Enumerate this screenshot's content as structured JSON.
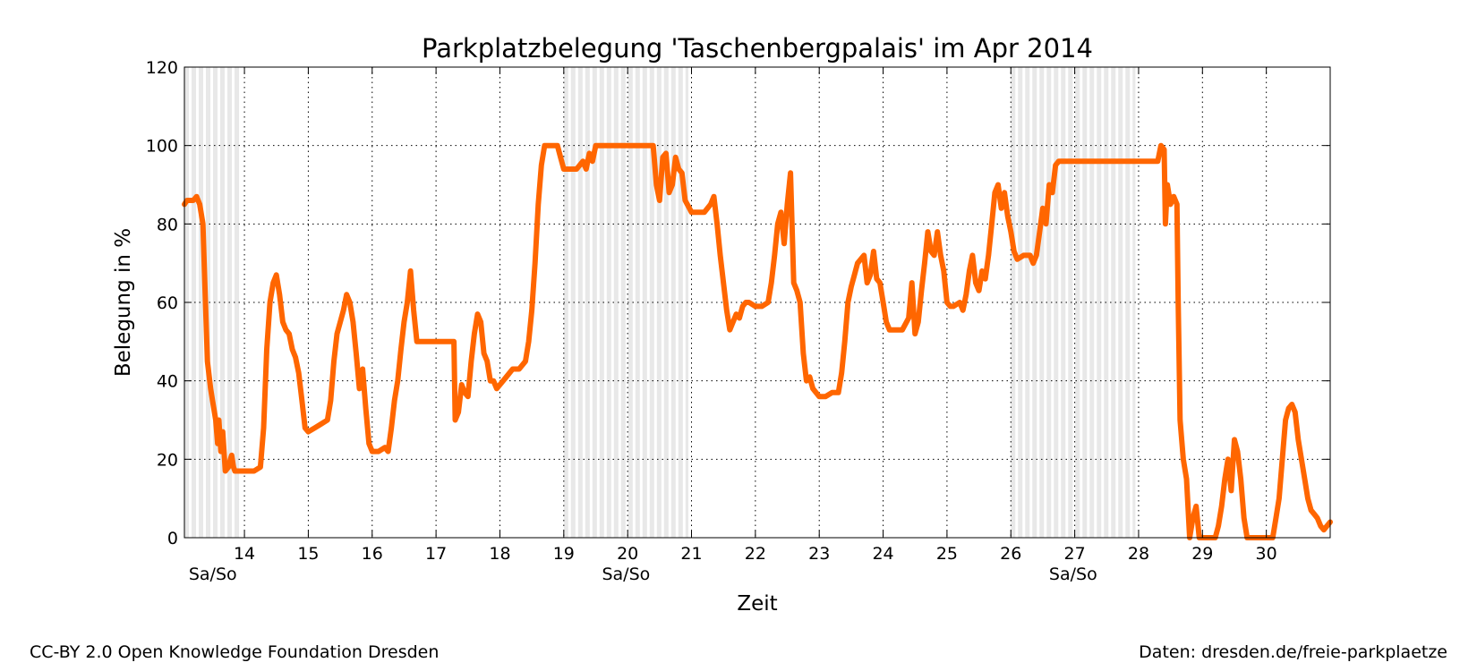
{
  "chart_data": {
    "type": "line",
    "title": "Parkplatzbelegung 'Taschenbergpalais' im Apr 2014",
    "xlabel": "Zeit",
    "ylabel": "Belegung in %",
    "xlim": [
      13.06,
      31.0
    ],
    "ylim": [
      0,
      120
    ],
    "yticks": [
      0,
      20,
      40,
      60,
      80,
      100,
      120
    ],
    "xticks": [
      14,
      15,
      16,
      17,
      18,
      19,
      20,
      21,
      22,
      23,
      24,
      25,
      26,
      27,
      28,
      29,
      30
    ],
    "grid": true,
    "line_color": "#ff6600",
    "weekend_shading_color": "#e8e8e8",
    "weekend_label": "Sa/So",
    "weekends": [
      [
        13.06,
        13.95
      ],
      [
        19.0,
        20.95
      ],
      [
        26.0,
        27.95
      ]
    ],
    "series": [
      {
        "values": [
          [
            13.06,
            85
          ],
          [
            13.1,
            86
          ],
          [
            13.2,
            86
          ],
          [
            13.25,
            87
          ],
          [
            13.3,
            85
          ],
          [
            13.35,
            80
          ],
          [
            13.38,
            65
          ],
          [
            13.42,
            45
          ],
          [
            13.47,
            38
          ],
          [
            13.5,
            35
          ],
          [
            13.55,
            30
          ],
          [
            13.58,
            24
          ],
          [
            13.6,
            30
          ],
          [
            13.63,
            22
          ],
          [
            13.66,
            27
          ],
          [
            13.7,
            17
          ],
          [
            13.75,
            18
          ],
          [
            13.78,
            20
          ],
          [
            13.8,
            21
          ],
          [
            13.83,
            18
          ],
          [
            13.85,
            17
          ],
          [
            13.9,
            17
          ],
          [
            14.0,
            17
          ],
          [
            14.15,
            17
          ],
          [
            14.25,
            18
          ],
          [
            14.3,
            28
          ],
          [
            14.35,
            48
          ],
          [
            14.4,
            60
          ],
          [
            14.45,
            65
          ],
          [
            14.5,
            67
          ],
          [
            14.55,
            62
          ],
          [
            14.6,
            55
          ],
          [
            14.65,
            53
          ],
          [
            14.7,
            52
          ],
          [
            14.75,
            48
          ],
          [
            14.8,
            46
          ],
          [
            14.85,
            42
          ],
          [
            14.9,
            35
          ],
          [
            14.95,
            28
          ],
          [
            15.0,
            27
          ],
          [
            15.1,
            28
          ],
          [
            15.2,
            29
          ],
          [
            15.3,
            30
          ],
          [
            15.35,
            35
          ],
          [
            15.4,
            45
          ],
          [
            15.45,
            52
          ],
          [
            15.5,
            55
          ],
          [
            15.55,
            58
          ],
          [
            15.6,
            62
          ],
          [
            15.65,
            60
          ],
          [
            15.7,
            55
          ],
          [
            15.75,
            47
          ],
          [
            15.8,
            38
          ],
          [
            15.85,
            43
          ],
          [
            15.9,
            33
          ],
          [
            15.95,
            24
          ],
          [
            16.0,
            22
          ],
          [
            16.1,
            22
          ],
          [
            16.2,
            23
          ],
          [
            16.25,
            22
          ],
          [
            16.3,
            28
          ],
          [
            16.35,
            35
          ],
          [
            16.4,
            40
          ],
          [
            16.45,
            48
          ],
          [
            16.5,
            55
          ],
          [
            16.55,
            60
          ],
          [
            16.6,
            68
          ],
          [
            16.65,
            58
          ],
          [
            16.7,
            50
          ],
          [
            16.8,
            50
          ],
          [
            17.0,
            50
          ],
          [
            17.2,
            50
          ],
          [
            17.28,
            50
          ],
          [
            17.3,
            30
          ],
          [
            17.35,
            32
          ],
          [
            17.4,
            39
          ],
          [
            17.45,
            37
          ],
          [
            17.5,
            36
          ],
          [
            17.55,
            45
          ],
          [
            17.6,
            52
          ],
          [
            17.65,
            57
          ],
          [
            17.7,
            55
          ],
          [
            17.75,
            47
          ],
          [
            17.8,
            45
          ],
          [
            17.85,
            40
          ],
          [
            17.9,
            40
          ],
          [
            17.95,
            38
          ],
          [
            18.0,
            39
          ],
          [
            18.1,
            41
          ],
          [
            18.2,
            43
          ],
          [
            18.3,
            43
          ],
          [
            18.4,
            45
          ],
          [
            18.45,
            50
          ],
          [
            18.5,
            58
          ],
          [
            18.55,
            70
          ],
          [
            18.6,
            85
          ],
          [
            18.65,
            95
          ],
          [
            18.7,
            100
          ],
          [
            18.8,
            100
          ],
          [
            18.9,
            100
          ],
          [
            18.95,
            97
          ],
          [
            19.0,
            94
          ],
          [
            19.1,
            94
          ],
          [
            19.2,
            94
          ],
          [
            19.3,
            96
          ],
          [
            19.35,
            94
          ],
          [
            19.4,
            98
          ],
          [
            19.45,
            96
          ],
          [
            19.5,
            100
          ],
          [
            19.6,
            100
          ],
          [
            19.8,
            100
          ],
          [
            20.0,
            100
          ],
          [
            20.2,
            100
          ],
          [
            20.4,
            100
          ],
          [
            20.45,
            90
          ],
          [
            20.5,
            86
          ],
          [
            20.55,
            97
          ],
          [
            20.6,
            98
          ],
          [
            20.65,
            88
          ],
          [
            20.7,
            90
          ],
          [
            20.75,
            97
          ],
          [
            20.8,
            94
          ],
          [
            20.85,
            93
          ],
          [
            20.9,
            86
          ],
          [
            21.0,
            83
          ],
          [
            21.1,
            83
          ],
          [
            21.2,
            83
          ],
          [
            21.3,
            85
          ],
          [
            21.35,
            87
          ],
          [
            21.4,
            80
          ],
          [
            21.45,
            72
          ],
          [
            21.5,
            65
          ],
          [
            21.55,
            58
          ],
          [
            21.6,
            53
          ],
          [
            21.65,
            55
          ],
          [
            21.7,
            57
          ],
          [
            21.75,
            56
          ],
          [
            21.8,
            59
          ],
          [
            21.85,
            60
          ],
          [
            21.9,
            60
          ],
          [
            22.0,
            59
          ],
          [
            22.1,
            59
          ],
          [
            22.2,
            60
          ],
          [
            22.25,
            65
          ],
          [
            22.3,
            72
          ],
          [
            22.35,
            80
          ],
          [
            22.4,
            83
          ],
          [
            22.45,
            75
          ],
          [
            22.5,
            85
          ],
          [
            22.55,
            93
          ],
          [
            22.6,
            65
          ],
          [
            22.65,
            63
          ],
          [
            22.7,
            60
          ],
          [
            22.75,
            47
          ],
          [
            22.8,
            40
          ],
          [
            22.85,
            41
          ],
          [
            22.9,
            38
          ],
          [
            22.95,
            37
          ],
          [
            23.0,
            36
          ],
          [
            23.1,
            36
          ],
          [
            23.2,
            37
          ],
          [
            23.3,
            37
          ],
          [
            23.35,
            42
          ],
          [
            23.4,
            50
          ],
          [
            23.45,
            60
          ],
          [
            23.5,
            64
          ],
          [
            23.55,
            67
          ],
          [
            23.6,
            70
          ],
          [
            23.65,
            71
          ],
          [
            23.7,
            72
          ],
          [
            23.75,
            65
          ],
          [
            23.8,
            67
          ],
          [
            23.85,
            73
          ],
          [
            23.9,
            66
          ],
          [
            23.95,
            65
          ],
          [
            24.0,
            60
          ],
          [
            24.05,
            55
          ],
          [
            24.1,
            53
          ],
          [
            24.2,
            53
          ],
          [
            24.3,
            53
          ],
          [
            24.4,
            56
          ],
          [
            24.45,
            65
          ],
          [
            24.5,
            52
          ],
          [
            24.55,
            55
          ],
          [
            24.6,
            63
          ],
          [
            24.65,
            70
          ],
          [
            24.7,
            78
          ],
          [
            24.75,
            73
          ],
          [
            24.8,
            72
          ],
          [
            24.85,
            78
          ],
          [
            24.9,
            72
          ],
          [
            24.95,
            68
          ],
          [
            25.0,
            60
          ],
          [
            25.05,
            59
          ],
          [
            25.1,
            59
          ],
          [
            25.2,
            60
          ],
          [
            25.25,
            58
          ],
          [
            25.3,
            62
          ],
          [
            25.35,
            68
          ],
          [
            25.4,
            72
          ],
          [
            25.45,
            65
          ],
          [
            25.5,
            63
          ],
          [
            25.55,
            68
          ],
          [
            25.6,
            66
          ],
          [
            25.65,
            72
          ],
          [
            25.7,
            80
          ],
          [
            25.75,
            88
          ],
          [
            25.8,
            90
          ],
          [
            25.85,
            84
          ],
          [
            25.9,
            88
          ],
          [
            25.95,
            82
          ],
          [
            26.0,
            78
          ],
          [
            26.05,
            73
          ],
          [
            26.1,
            71
          ],
          [
            26.2,
            72
          ],
          [
            26.3,
            72
          ],
          [
            26.35,
            70
          ],
          [
            26.4,
            72
          ],
          [
            26.45,
            78
          ],
          [
            26.5,
            84
          ],
          [
            26.55,
            80
          ],
          [
            26.6,
            90
          ],
          [
            26.65,
            88
          ],
          [
            26.7,
            95
          ],
          [
            26.75,
            96
          ],
          [
            26.9,
            96
          ],
          [
            27.1,
            96
          ],
          [
            27.3,
            96
          ],
          [
            27.5,
            96
          ],
          [
            27.7,
            96
          ],
          [
            27.9,
            96
          ],
          [
            28.1,
            96
          ],
          [
            28.3,
            96
          ],
          [
            28.35,
            100
          ],
          [
            28.4,
            99
          ],
          [
            28.42,
            80
          ],
          [
            28.45,
            90
          ],
          [
            28.5,
            85
          ],
          [
            28.55,
            87
          ],
          [
            28.6,
            85
          ],
          [
            28.62,
            60
          ],
          [
            28.65,
            30
          ],
          [
            28.7,
            20
          ],
          [
            28.75,
            15
          ],
          [
            28.8,
            0
          ],
          [
            28.85,
            5
          ],
          [
            28.9,
            8
          ],
          [
            28.95,
            0
          ],
          [
            29.0,
            0
          ],
          [
            29.1,
            0
          ],
          [
            29.2,
            0
          ],
          [
            29.25,
            3
          ],
          [
            29.3,
            8
          ],
          [
            29.35,
            15
          ],
          [
            29.4,
            20
          ],
          [
            29.45,
            12
          ],
          [
            29.5,
            25
          ],
          [
            29.55,
            22
          ],
          [
            29.6,
            15
          ],
          [
            29.65,
            5
          ],
          [
            29.7,
            0
          ],
          [
            29.8,
            0
          ],
          [
            29.9,
            0
          ],
          [
            30.0,
            0
          ],
          [
            30.1,
            0
          ],
          [
            30.15,
            5
          ],
          [
            30.2,
            10
          ],
          [
            30.25,
            20
          ],
          [
            30.3,
            30
          ],
          [
            30.35,
            33
          ],
          [
            30.4,
            34
          ],
          [
            30.45,
            32
          ],
          [
            30.5,
            25
          ],
          [
            30.55,
            20
          ],
          [
            30.6,
            15
          ],
          [
            30.65,
            10
          ],
          [
            30.7,
            7
          ],
          [
            30.75,
            6
          ],
          [
            30.8,
            5
          ],
          [
            30.85,
            3
          ],
          [
            30.9,
            2
          ],
          [
            30.95,
            3
          ],
          [
            31.0,
            4
          ]
        ]
      }
    ]
  },
  "footer": {
    "license": "CC-BY 2.0 Open Knowledge Foundation Dresden",
    "source": "Daten: dresden.de/freie-parkplaetze"
  }
}
